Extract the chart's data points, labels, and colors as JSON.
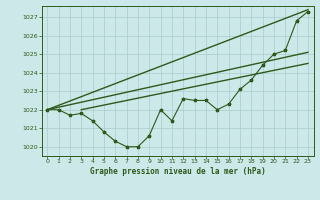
{
  "title": "Graphe pression niveau de la mer (hPa)",
  "bg_color": "#cce8e8",
  "grid_color": "#a8cccc",
  "line_color": "#2d5a1b",
  "xlim": [
    -0.5,
    23.5
  ],
  "ylim": [
    1019.5,
    1027.6
  ],
  "yticks": [
    1020,
    1021,
    1022,
    1023,
    1024,
    1025,
    1026,
    1027
  ],
  "xticks": [
    0,
    1,
    2,
    3,
    4,
    5,
    6,
    7,
    8,
    9,
    10,
    11,
    12,
    13,
    14,
    15,
    16,
    17,
    18,
    19,
    20,
    21,
    22,
    23
  ],
  "series": [
    {
      "x": [
        0,
        23
      ],
      "y": [
        1022.0,
        1027.4
      ],
      "marker": null,
      "lw": 1.0
    },
    {
      "x": [
        0,
        23
      ],
      "y": [
        1022.0,
        1025.1
      ],
      "marker": null,
      "lw": 1.0
    },
    {
      "x": [
        3,
        23
      ],
      "y": [
        1022.0,
        1024.5
      ],
      "marker": null,
      "lw": 1.0
    },
    {
      "x": [
        0,
        1,
        2,
        3,
        4,
        5,
        6,
        7,
        8,
        9,
        10,
        11,
        12,
        13,
        14,
        15,
        16,
        17,
        18,
        19,
        20,
        21,
        22,
        23
      ],
      "y": [
        1022.0,
        1022.0,
        1021.7,
        1021.8,
        1021.4,
        1020.8,
        1020.3,
        1020.0,
        1020.0,
        1020.6,
        1022.0,
        1021.4,
        1022.6,
        1022.5,
        1022.5,
        1022.0,
        1022.3,
        1023.1,
        1023.6,
        1024.4,
        1025.0,
        1025.2,
        1026.8,
        1027.3
      ],
      "marker": "*",
      "lw": 0.8
    }
  ]
}
